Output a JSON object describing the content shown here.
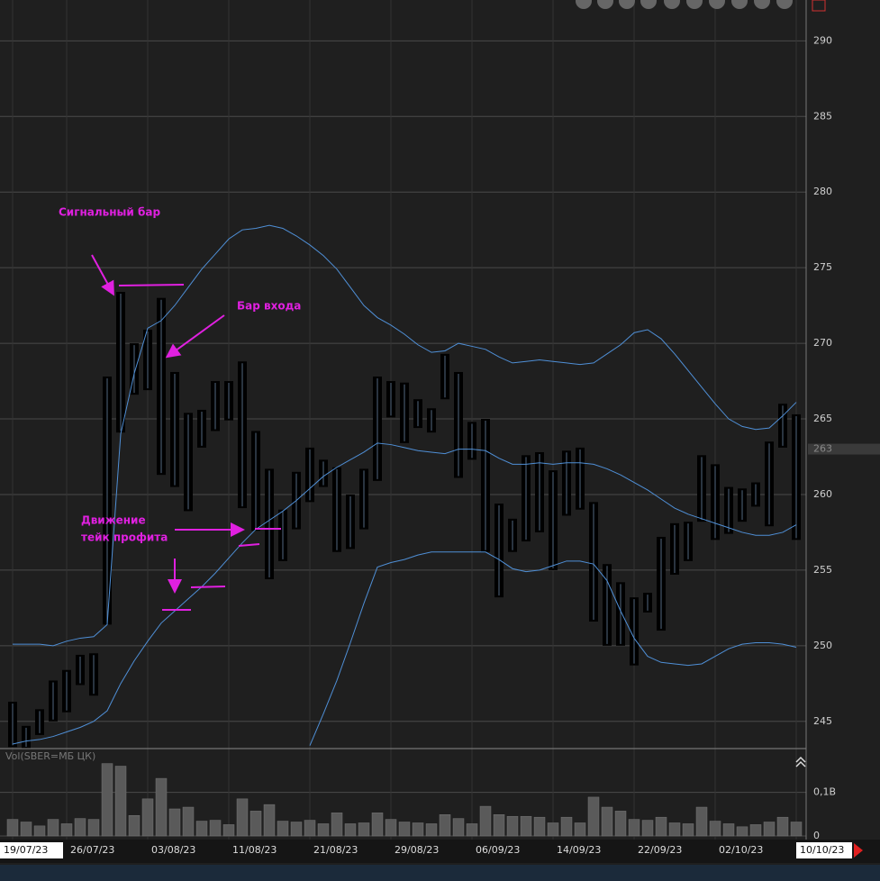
{
  "chart_data": {
    "type": "candlestick",
    "categories": [
      "19/07/23",
      null,
      null,
      null,
      "26/07/23",
      null,
      null,
      null,
      null,
      null,
      "03/08/23",
      null,
      null,
      null,
      null,
      null,
      "11/08/23",
      null,
      null,
      null,
      null,
      null,
      "21/08/23",
      null,
      null,
      null,
      null,
      null,
      "29/08/23",
      null,
      null,
      null,
      null,
      null,
      "06/09/23",
      null,
      null,
      null,
      null,
      null,
      "14/09/23",
      null,
      null,
      null,
      null,
      null,
      "22/09/23",
      null,
      null,
      null,
      null,
      null,
      "02/10/23",
      null,
      null,
      null,
      null,
      null,
      "10/10/23"
    ],
    "high": [
      246.3,
      244.7,
      245.8,
      247.7,
      248.4,
      249.4,
      249.5,
      267.8,
      273.4,
      270,
      270.9,
      273,
      268.1,
      265.4,
      265.6,
      267.5,
      267.5,
      268.8,
      264.2,
      261.7,
      259,
      261.5,
      263.1,
      262.3,
      261.8,
      260,
      261.7,
      267.8,
      267.5,
      267.4,
      266.3,
      265.7,
      269.3,
      268.1,
      264.8,
      265,
      259.4,
      258.4,
      262.6,
      262.8,
      261.6,
      262.9,
      263.1,
      259.5,
      255.4,
      254.2,
      253.2,
      253.5,
      257.2,
      258.1,
      258.2,
      262.6,
      262,
      260.5,
      260.4,
      260.8,
      263.5,
      266,
      265.3
    ],
    "low": [
      243.3,
      243.2,
      244.1,
      245,
      245.6,
      247.4,
      246.7,
      251.4,
      264.1,
      266.6,
      266.9,
      261.3,
      260.5,
      258.9,
      263.1,
      264.2,
      264.9,
      259.1,
      257.6,
      254.4,
      255.6,
      257.7,
      259.5,
      260.5,
      256.2,
      256.4,
      257.7,
      260.9,
      265.1,
      263.4,
      264.4,
      264.1,
      266.3,
      261.1,
      262.3,
      256.2,
      253.2,
      256.2,
      256.9,
      257.5,
      255,
      258.6,
      259,
      251.6,
      250,
      250,
      248.7,
      252.2,
      251,
      254.7,
      255.6,
      258.2,
      257,
      257.4,
      258.2,
      259.2,
      257.9,
      263.1,
      257
    ],
    "color": "#000000",
    "bands": {
      "color": "#4f8fd6",
      "upper": [
        250.1,
        250.1,
        250.1,
        250,
        250.3,
        250.5,
        250.6,
        251.4,
        264,
        268,
        271,
        271.5,
        272.5,
        273.7,
        274.9,
        275.9,
        276.9,
        277.5,
        277.6,
        277.8,
        277.6,
        277.1,
        276.5,
        275.8,
        274.9,
        273.7,
        272.5,
        271.7,
        271.2,
        270.6,
        269.9,
        269.4,
        269.5,
        270,
        269.8,
        269.6,
        269.1,
        268.7,
        268.8,
        268.9,
        268.8,
        268.7,
        268.6,
        268.7,
        269.3,
        269.9,
        270.7,
        270.9,
        270.3,
        269.3,
        268.2,
        267.1,
        266,
        265,
        264.5,
        264.3,
        264.4,
        265.2,
        266.1
      ],
      "middle": [
        243.5,
        243.7,
        243.8,
        244,
        244.3,
        244.6,
        245,
        245.7,
        247.5,
        249,
        250.3,
        251.5,
        252.3,
        253.1,
        253.9,
        254.8,
        255.8,
        256.8,
        257.7,
        258.3,
        258.9,
        259.6,
        260.4,
        261.2,
        261.8,
        262.3,
        262.8,
        263.4,
        263.3,
        263.1,
        262.9,
        262.8,
        262.7,
        263,
        263,
        262.9,
        262.4,
        262,
        262,
        262.1,
        262,
        262.1,
        262.1,
        262,
        261.7,
        261.3,
        260.8,
        260.3,
        259.7,
        259.1,
        258.7,
        258.4,
        258.1,
        257.8,
        257.5,
        257.3,
        257.3,
        257.5,
        258
      ],
      "lower": [
        null,
        null,
        null,
        null,
        null,
        null,
        null,
        null,
        null,
        null,
        null,
        null,
        null,
        null,
        null,
        null,
        null,
        null,
        null,
        null,
        null,
        null,
        243.4,
        245.5,
        247.7,
        250.2,
        252.8,
        255.2,
        255.5,
        255.7,
        256,
        256.2,
        256.2,
        256.2,
        256.2,
        256.2,
        255.7,
        255.1,
        254.9,
        255,
        255.3,
        255.6,
        255.6,
        255.4,
        254.3,
        252.3,
        250.5,
        249.3,
        248.9,
        248.8,
        248.7,
        248.8,
        249.3,
        249.8,
        250.1,
        250.2,
        250.2,
        250.1,
        249.9
      ]
    },
    "ylim": [
      243.2,
      292.7
    ],
    "yticks": [
      245,
      250,
      255,
      260,
      265,
      270,
      275,
      280,
      285,
      290
    ],
    "grid": true,
    "last_price": {
      "value": 263,
      "label": "263"
    },
    "volume": {
      "label": "Vol(SBER=МБ ЦК)",
      "color": "#5a5a5a",
      "values": [
        0.038,
        0.032,
        0.023,
        0.038,
        0.028,
        0.04,
        0.038,
        0.166,
        0.16,
        0.047,
        0.085,
        0.132,
        0.062,
        0.066,
        0.034,
        0.036,
        0.026,
        0.085,
        0.057,
        0.072,
        0.034,
        0.032,
        0.036,
        0.028,
        0.053,
        0.028,
        0.03,
        0.053,
        0.038,
        0.032,
        0.03,
        0.028,
        0.049,
        0.04,
        0.028,
        0.068,
        0.049,
        0.045,
        0.045,
        0.043,
        0.03,
        0.043,
        0.03,
        0.089,
        0.066,
        0.057,
        0.038,
        0.036,
        0.043,
        0.03,
        0.028,
        0.066,
        0.034,
        0.028,
        0.021,
        0.026,
        0.032,
        0.043,
        0.032
      ],
      "ylim": [
        0,
        0.19
      ],
      "yticks": [
        0,
        {
          "value": 0.1,
          "label": "0,1B"
        }
      ]
    },
    "annotations": [
      "Сигнальный бар",
      "Бар входа",
      "Движение",
      "тейк профита"
    ]
  }
}
